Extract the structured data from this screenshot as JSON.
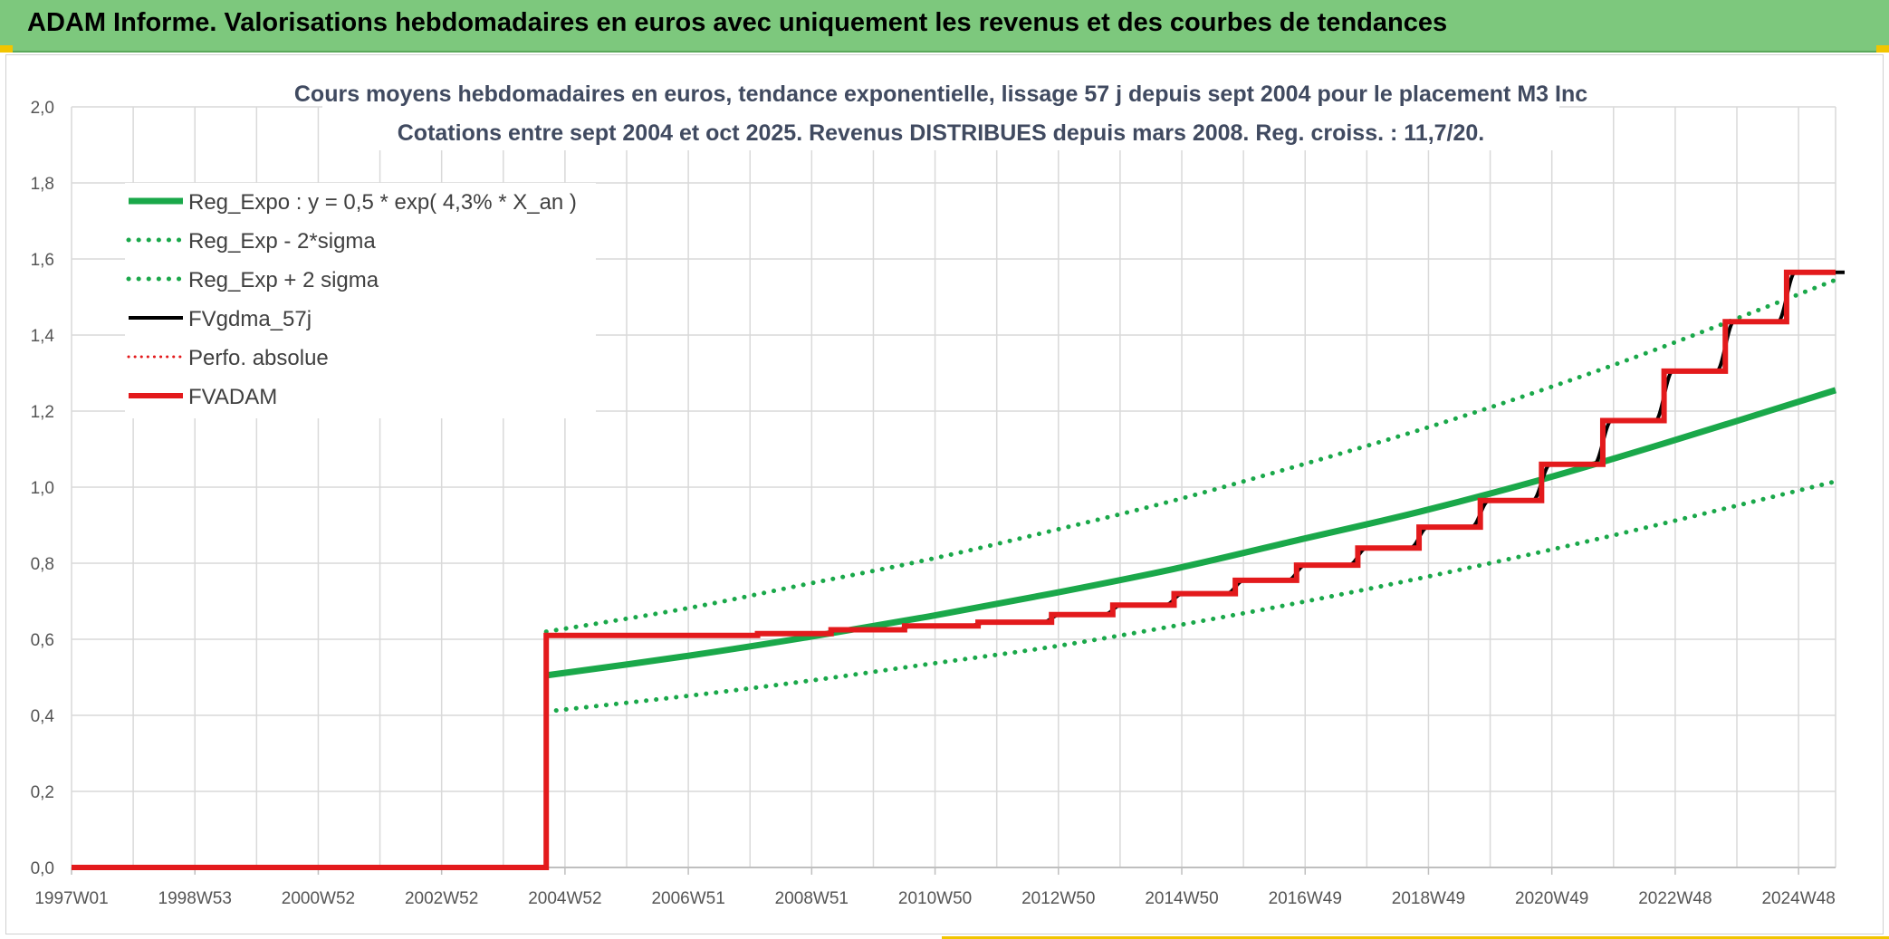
{
  "banner": {
    "title": "ADAM Informe. Valorisations hebdomadaires en euros avec uniquement les revenus et des courbes de tendances"
  },
  "chart_data": {
    "type": "line",
    "title_line1": "Cours moyens hebdomadaires en euros, tendance exponentielle, lissage 57 j depuis sept 2004 pour le placement M3 Inc",
    "title_line2": "Cotations entre sept 2004 et oct 2025. Revenus DISTRIBUES depuis mars 2008. Reg. croiss. : 11,7/20.",
    "x_tick_labels": [
      "1997W01",
      "1998W53",
      "2000W52",
      "2002W52",
      "2004W52",
      "2006W51",
      "2008W51",
      "2010W50",
      "2012W50",
      "2014W50",
      "2016W49",
      "2018W49",
      "2020W49",
      "2022W48",
      "2024W48"
    ],
    "xlim": [
      1997.0,
      2025.8
    ],
    "ylim": [
      0,
      2.0
    ],
    "y_ticks": [
      0.0,
      0.2,
      0.4,
      0.6,
      0.8,
      1.0,
      1.2,
      1.4,
      1.6,
      1.8,
      2.0
    ],
    "y_tick_labels": [
      "0,0",
      "0,2",
      "0,4",
      "0,6",
      "0,8",
      "1,0",
      "1,2",
      "1,4",
      "1,6",
      "1,8",
      "2,0"
    ],
    "grid": true,
    "legend_position": "top-left",
    "colors": {
      "reg_expo": "#1aa84a",
      "band": "#1aa84a",
      "fvgdma": "#000000",
      "perfo": "#e31a1c",
      "fvadam": "#e31a1c"
    },
    "series": [
      {
        "name": "Reg_Expo : y = 0,5 * exp( 4,3% *  X_an )",
        "style": "solid-thick",
        "x": [
          2004.75,
          2007,
          2009,
          2011,
          2013,
          2015,
          2017,
          2019,
          2021,
          2023,
          2025.8
        ],
        "values": [
          0.505,
          0.555,
          0.605,
          0.66,
          0.72,
          0.785,
          0.86,
          0.935,
          1.02,
          1.115,
          1.255
        ]
      },
      {
        "name": "Reg_Exp - 2*sigma",
        "style": "dotted",
        "x": [
          2004.75,
          2007,
          2009,
          2011,
          2013,
          2015,
          2017,
          2019,
          2021,
          2023,
          2025.8
        ],
        "values": [
          0.41,
          0.45,
          0.49,
          0.535,
          0.58,
          0.635,
          0.695,
          0.76,
          0.83,
          0.905,
          1.015
        ]
      },
      {
        "name": "Reg_Exp + 2 sigma",
        "style": "dotted",
        "x": [
          2004.75,
          2007,
          2009,
          2011,
          2013,
          2015,
          2017,
          2019,
          2021,
          2023,
          2025.8
        ],
        "values": [
          0.62,
          0.68,
          0.745,
          0.81,
          0.885,
          0.965,
          1.055,
          1.15,
          1.255,
          1.37,
          1.545
        ]
      },
      {
        "name": "FVgdma_57j",
        "style": "solid-thin",
        "x": [
          1997.0,
          2004.75,
          2004.75,
          2008.2,
          2009.4,
          2010.6,
          2011.8,
          2013.0,
          2014.0,
          2015.0,
          2016.0,
          2017.0,
          2018.0,
          2019.0,
          2020.0,
          2021.0,
          2022.0,
          2023.0,
          2024.0,
          2025.0,
          2025.8
        ],
        "values": [
          0.0,
          0.0,
          0.61,
          0.615,
          0.625,
          0.635,
          0.645,
          0.665,
          0.69,
          0.72,
          0.755,
          0.795,
          0.84,
          0.895,
          0.965,
          1.06,
          1.175,
          1.305,
          1.435,
          1.565,
          1.565
        ]
      },
      {
        "name": "Perfo. absolue",
        "style": "dotted-thin",
        "x": [],
        "values": []
      },
      {
        "name": "FVADAM",
        "style": "step-thick",
        "x": [
          1997.0,
          2004.75,
          2004.75,
          2008.2,
          2009.4,
          2010.6,
          2011.8,
          2013.0,
          2014.0,
          2015.0,
          2016.0,
          2017.0,
          2018.0,
          2019.0,
          2020.0,
          2021.0,
          2022.0,
          2023.0,
          2024.0,
          2025.0,
          2025.8
        ],
        "values": [
          0.0,
          0.0,
          0.61,
          0.615,
          0.625,
          0.635,
          0.645,
          0.665,
          0.69,
          0.72,
          0.755,
          0.795,
          0.84,
          0.895,
          0.965,
          1.06,
          1.175,
          1.305,
          1.435,
          1.565,
          1.565
        ]
      }
    ]
  }
}
